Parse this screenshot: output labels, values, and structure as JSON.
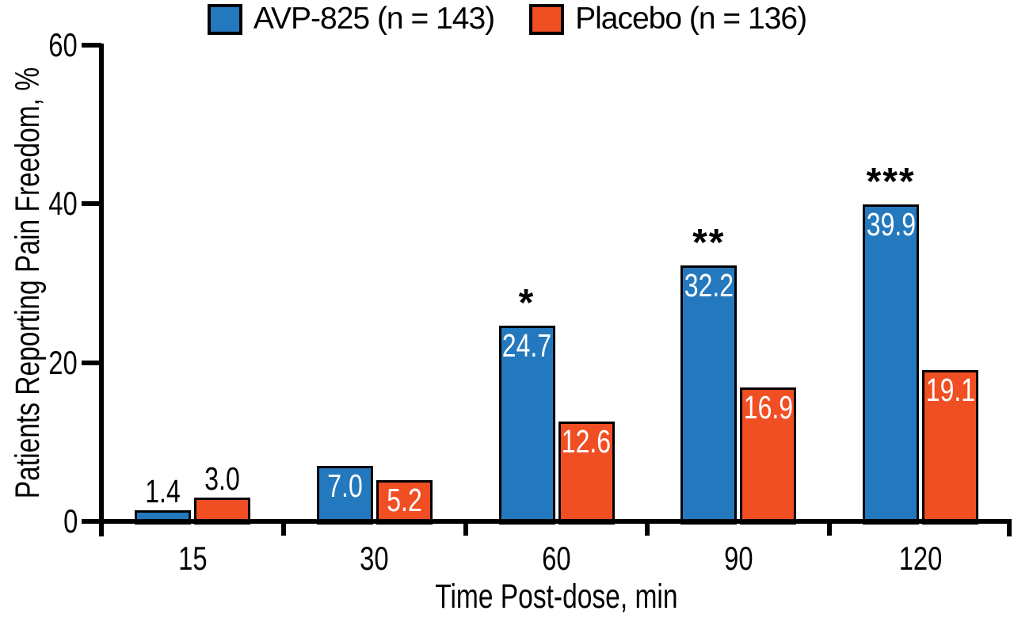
{
  "chart_data": {
    "type": "bar",
    "title": "",
    "xlabel": "Time Post-dose, min",
    "ylabel": "Patients Reporting Pain Freedom, %",
    "categories": [
      "15",
      "30",
      "60",
      "90",
      "120"
    ],
    "series": [
      {
        "name": "AVP-825 (n = 143)",
        "color": "#2478BD",
        "values": [
          1.4,
          7.0,
          24.7,
          32.2,
          39.9
        ],
        "value_labels": [
          "1.4",
          "7.0",
          "24.7",
          "32.2",
          "39.9"
        ],
        "significance": [
          "",
          "",
          "*",
          "**",
          "***"
        ]
      },
      {
        "name": "Placebo (n = 136)",
        "color": "#F04E23",
        "values": [
          3.0,
          5.2,
          12.6,
          16.9,
          19.1
        ],
        "value_labels": [
          "3.0",
          "5.2",
          "12.6",
          "16.9",
          "19.1"
        ],
        "significance": [
          "",
          "",
          "",
          "",
          ""
        ]
      }
    ],
    "ylim": [
      0,
      60
    ],
    "yticks": [
      0,
      20,
      40,
      60
    ],
    "ytick_labels": [
      "0",
      "20",
      "40",
      "60"
    ],
    "legend_position": "top",
    "grid": false,
    "axis_color": "#000000",
    "bar_border_color": "#000000",
    "value_label_color_inside": "#FFFFFF",
    "value_label_color_outside": "#000000",
    "background_color": "#FFFFFF"
  }
}
